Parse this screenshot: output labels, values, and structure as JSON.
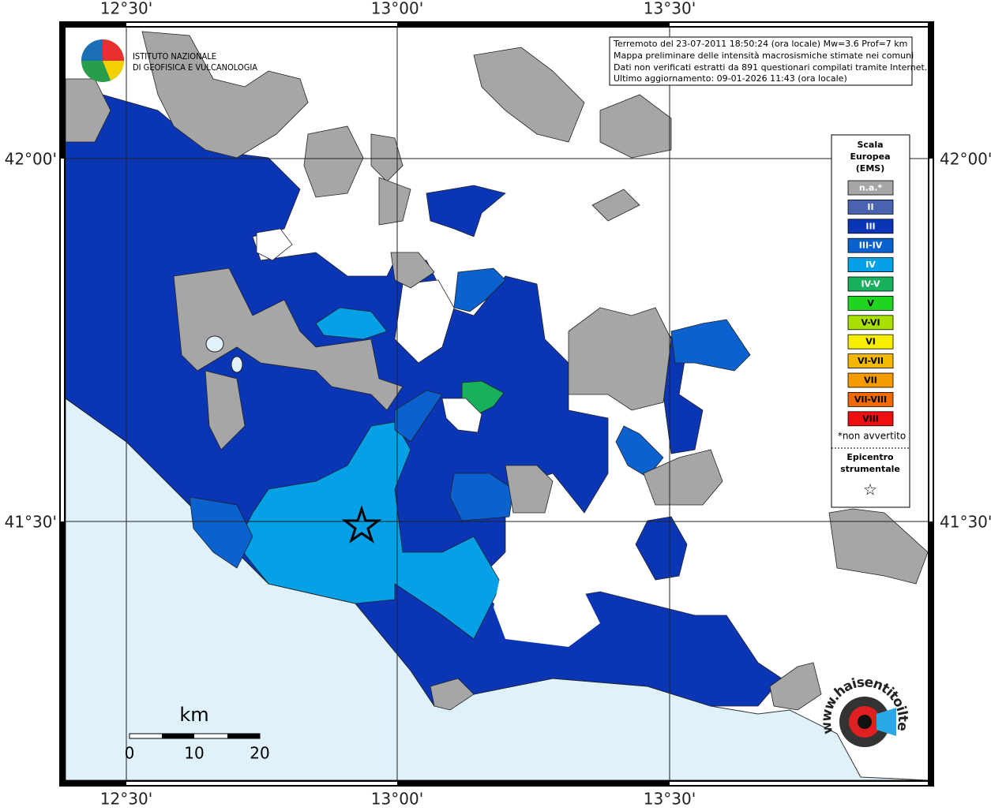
{
  "map": {
    "lon_labels": [
      "12°30'",
      "13°00'",
      "13°30'"
    ],
    "lat_labels": [
      "42°00'",
      "41°30'"
    ],
    "info": [
      "Terremoto del 23-07-2011 18:50:24 (ora locale) Mw=3.6 Prof=7 km",
      "Mappa preliminare delle intensità macrosismiche stimate nei comuni",
      "Dati non verificati estratti da 891 questionari compilati tramite Internet.",
      "Ultimo aggiornamento: 09-01-2026 11:43 (ora locale)"
    ],
    "logo": [
      "ISTITUTO NAZIONALE",
      "DI GEOFISICA E VULCANOLOGIA"
    ],
    "legend": {
      "title": [
        "Scala",
        "Europea",
        "(EMS)"
      ],
      "items": [
        {
          "label": "n.a.*",
          "color": "#a6a6a6"
        },
        {
          "label": "II",
          "color": "#4a63b0"
        },
        {
          "label": "III",
          "color": "#0a36b5"
        },
        {
          "label": "III-IV",
          "color": "#0b62cf"
        },
        {
          "label": "IV",
          "color": "#05a0e6"
        },
        {
          "label": "IV-V",
          "color": "#18b05c"
        },
        {
          "label": "V",
          "color": "#1fd51f"
        },
        {
          "label": "V-VI",
          "color": "#a8e000"
        },
        {
          "label": "VI",
          "color": "#f5ee00"
        },
        {
          "label": "VI-VII",
          "color": "#f5b800"
        },
        {
          "label": "VII",
          "color": "#f59a00"
        },
        {
          "label": "VII-VIII",
          "color": "#f06a00"
        },
        {
          "label": "VIII",
          "color": "#ee1010"
        }
      ],
      "note": "*non avvertito",
      "epicenter": [
        "Epicentro",
        "strumentale"
      ],
      "epicenter_symbol": "☆"
    },
    "scale": {
      "unit": "km",
      "ticks": [
        0,
        10,
        20
      ]
    },
    "site": "www.haisentitoilterremoto.it"
  }
}
